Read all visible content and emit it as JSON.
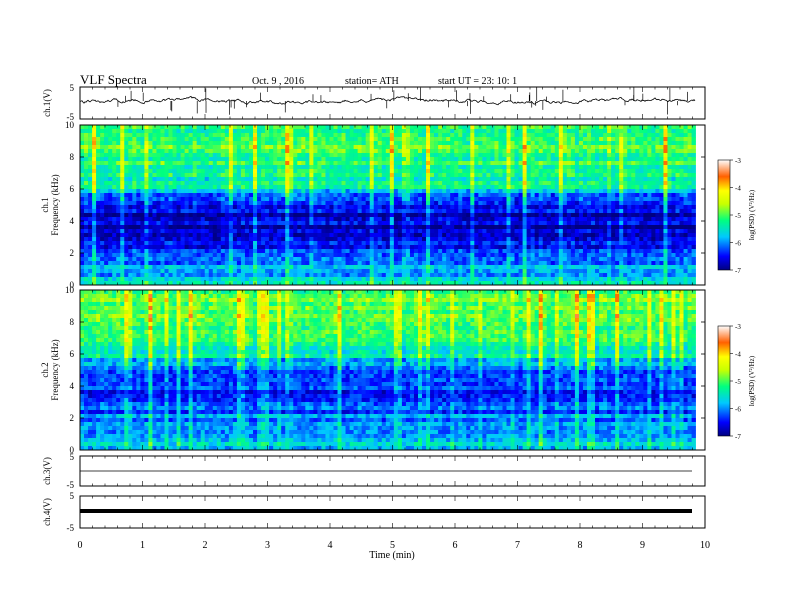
{
  "header": {
    "title": "VLF  Spectra",
    "date": "Oct. 9  , 2016",
    "station": "station= ATH",
    "start": "start  UT =    23: 10: 1"
  },
  "chart_data": [
    {
      "type": "line",
      "panel": "ch1-waveform",
      "ylabel": "ch.1(V)",
      "ylim": [
        -5,
        5
      ],
      "yticks": [
        "5",
        "-5"
      ],
      "note": "noisy waveform near 0 V with sparse spikes"
    },
    {
      "type": "heatmap",
      "panel": "ch1-spectrogram",
      "ylabel": "ch.1",
      "ylabel2": "Frequency  (kHz)",
      "ylim": [
        0,
        10
      ],
      "yticks": [
        "0",
        "2",
        "4",
        "6",
        "8",
        "10"
      ],
      "colorbar": {
        "label": "log(PSD) (V²/Hz)",
        "ticks": [
          "-3",
          "-4",
          "-5",
          "-6",
          "-7"
        ],
        "range": [
          -7,
          -3
        ]
      },
      "profile_khz": [
        0,
        1,
        2,
        3,
        4,
        5,
        5.6,
        6,
        7,
        8,
        9,
        10
      ],
      "profile_logpsd": [
        -5.6,
        -5.9,
        -6.3,
        -6.8,
        -6.7,
        -6.6,
        -6.2,
        -5.6,
        -5.3,
        -5.2,
        -5.1,
        -5.2
      ]
    },
    {
      "type": "heatmap",
      "panel": "ch2-spectrogram",
      "ylabel": "ch.2",
      "ylabel2": "Frequency  (kHz)",
      "ylim": [
        0,
        10
      ],
      "yticks": [
        "0",
        "2",
        "4",
        "6",
        "8",
        "10"
      ],
      "colorbar": {
        "label": "log(PSD) (V²/Hz)",
        "ticks": [
          "-3",
          "-4",
          "-5",
          "-6",
          "-7"
        ],
        "range": [
          -7,
          -3
        ]
      },
      "profile_khz": [
        0,
        1,
        2,
        3,
        3.5,
        4,
        5,
        6,
        7,
        8,
        9,
        10
      ],
      "profile_logpsd": [
        -5.7,
        -5.8,
        -6.0,
        -6.4,
        -6.8,
        -6.3,
        -6.0,
        -5.5,
        -5.3,
        -5.0,
        -4.9,
        -5.1
      ]
    },
    {
      "type": "line",
      "panel": "ch3-waveform",
      "ylabel": "ch.3(V)",
      "ylim": [
        -5,
        5
      ],
      "yticks": [
        "5",
        "-5"
      ],
      "note": "flat line slightly below 0 V"
    },
    {
      "type": "line",
      "panel": "ch4-waveform",
      "ylabel": "ch.4(V)",
      "ylim": [
        -5,
        5
      ],
      "yticks": [
        "5",
        "-5"
      ],
      "note": "thick flat line near 0 V"
    }
  ],
  "xaxis": {
    "label": "Time  (min)",
    "range": [
      0,
      10
    ],
    "data_end": 9.85,
    "ticks": [
      "0",
      "1",
      "2",
      "3",
      "4",
      "5",
      "6",
      "7",
      "8",
      "9",
      "10"
    ]
  }
}
